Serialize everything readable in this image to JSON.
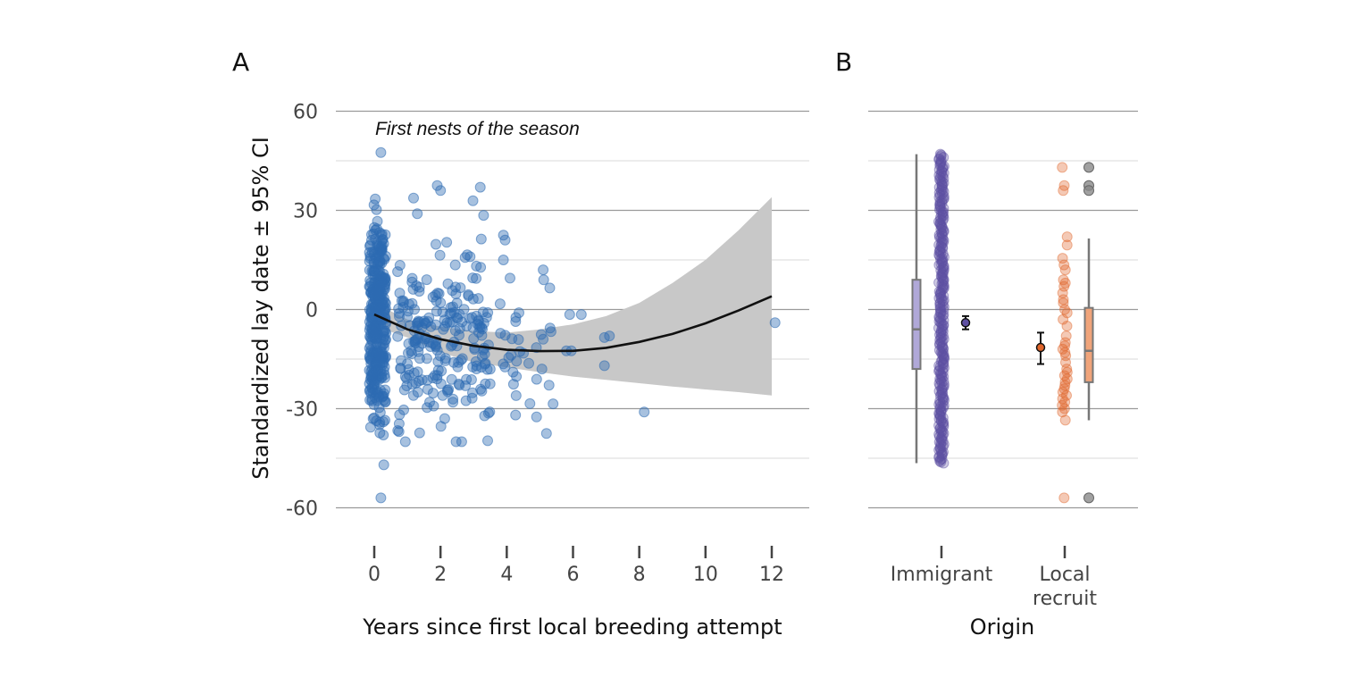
{
  "figure": {
    "panel_a_tag": "A",
    "panel_b_tag": "B"
  },
  "chart_data": [
    {
      "type": "scatter",
      "panel": "A",
      "annotation": "First nests of the season",
      "xlabel": "Years since first local breeding attempt",
      "ylabel": "Standardized lay date ± 95% CI",
      "xlim": [
        -1,
        12.3
      ],
      "ylim": [
        -65,
        65
      ],
      "xticks": [
        0,
        2,
        4,
        6,
        8,
        10,
        12
      ],
      "yticks": [
        60,
        30,
        0,
        -30,
        -60
      ],
      "ytick_labels": [
        "60",
        "30",
        "0",
        "-30",
        "-60"
      ],
      "grid": "horizontal",
      "colors": {
        "points": "#2E6BB3",
        "fit_line": "#111111",
        "ribbon": "#C8C8C8"
      },
      "fit": {
        "x": [
          0,
          1,
          2,
          3,
          4,
          5,
          6,
          7,
          8,
          9,
          10,
          11,
          12
        ],
        "y": [
          -1.5,
          -6,
          -9,
          -11,
          -12.2,
          -12.6,
          -12.5,
          -11.6,
          -9.8,
          -7.4,
          -4.2,
          -0.3,
          4
        ]
      },
      "ci": {
        "x": [
          0,
          1,
          2,
          3,
          4,
          5,
          6,
          7,
          8,
          9,
          10,
          11,
          12
        ],
        "lower": [
          -5,
          -8.5,
          -13,
          -16,
          -17.5,
          -19,
          -20.3,
          -21.3,
          -22.3,
          -23.3,
          -24.2,
          -25,
          -26
        ],
        "upper": [
          2,
          -3,
          -5.2,
          -6.5,
          -7,
          -6,
          -4.5,
          -2,
          2,
          8,
          15,
          24,
          34
        ]
      }
    },
    {
      "type": "box",
      "panel": "B",
      "xlabel": "Origin",
      "categories": [
        "Immigrant",
        "Local\nrecruit"
      ],
      "category_lines": [
        [
          "Immigrant"
        ],
        [
          "Local",
          "recruit"
        ]
      ],
      "ylim": [
        -65,
        65
      ],
      "colors": {
        "Immigrant": "#5E4FA2",
        "Local recruit": "#E0652A",
        "Immigrant box": "#B0A8D8",
        "Local recruit box": "#F0A47A",
        "box_outline": "#777777",
        "outliers": "#8A8A8A"
      },
      "groups": [
        {
          "name": "Immigrant",
          "box": {
            "min": -46.5,
            "q1": -18,
            "median": -6,
            "q3": 9,
            "max": 47
          },
          "outliers": [],
          "mean": -4,
          "ci": [
            -6,
            -2
          ],
          "points_range": [
            -46.5,
            47
          ]
        },
        {
          "name": "Local recruit",
          "box": {
            "min": -33.5,
            "q1": -22,
            "median": -12.5,
            "q3": 0.5,
            "max": 21.5
          },
          "outliers": [
            43,
            37.5,
            36,
            -57
          ],
          "mean": -11.5,
          "ci": [
            -16.5,
            -7
          ],
          "points": [
            43,
            37.5,
            36,
            22,
            19.5,
            15.5,
            13.5,
            12,
            9,
            8,
            7,
            5,
            3,
            2,
            0,
            -1,
            -3,
            -5,
            -8,
            -10,
            -11,
            -12,
            -13,
            -14,
            -16,
            -18,
            -19,
            -20,
            -21,
            -22,
            -23,
            -24,
            -25,
            -26,
            -27,
            -28,
            -29,
            -30,
            -31,
            -33.5,
            -57
          ]
        }
      ]
    }
  ]
}
